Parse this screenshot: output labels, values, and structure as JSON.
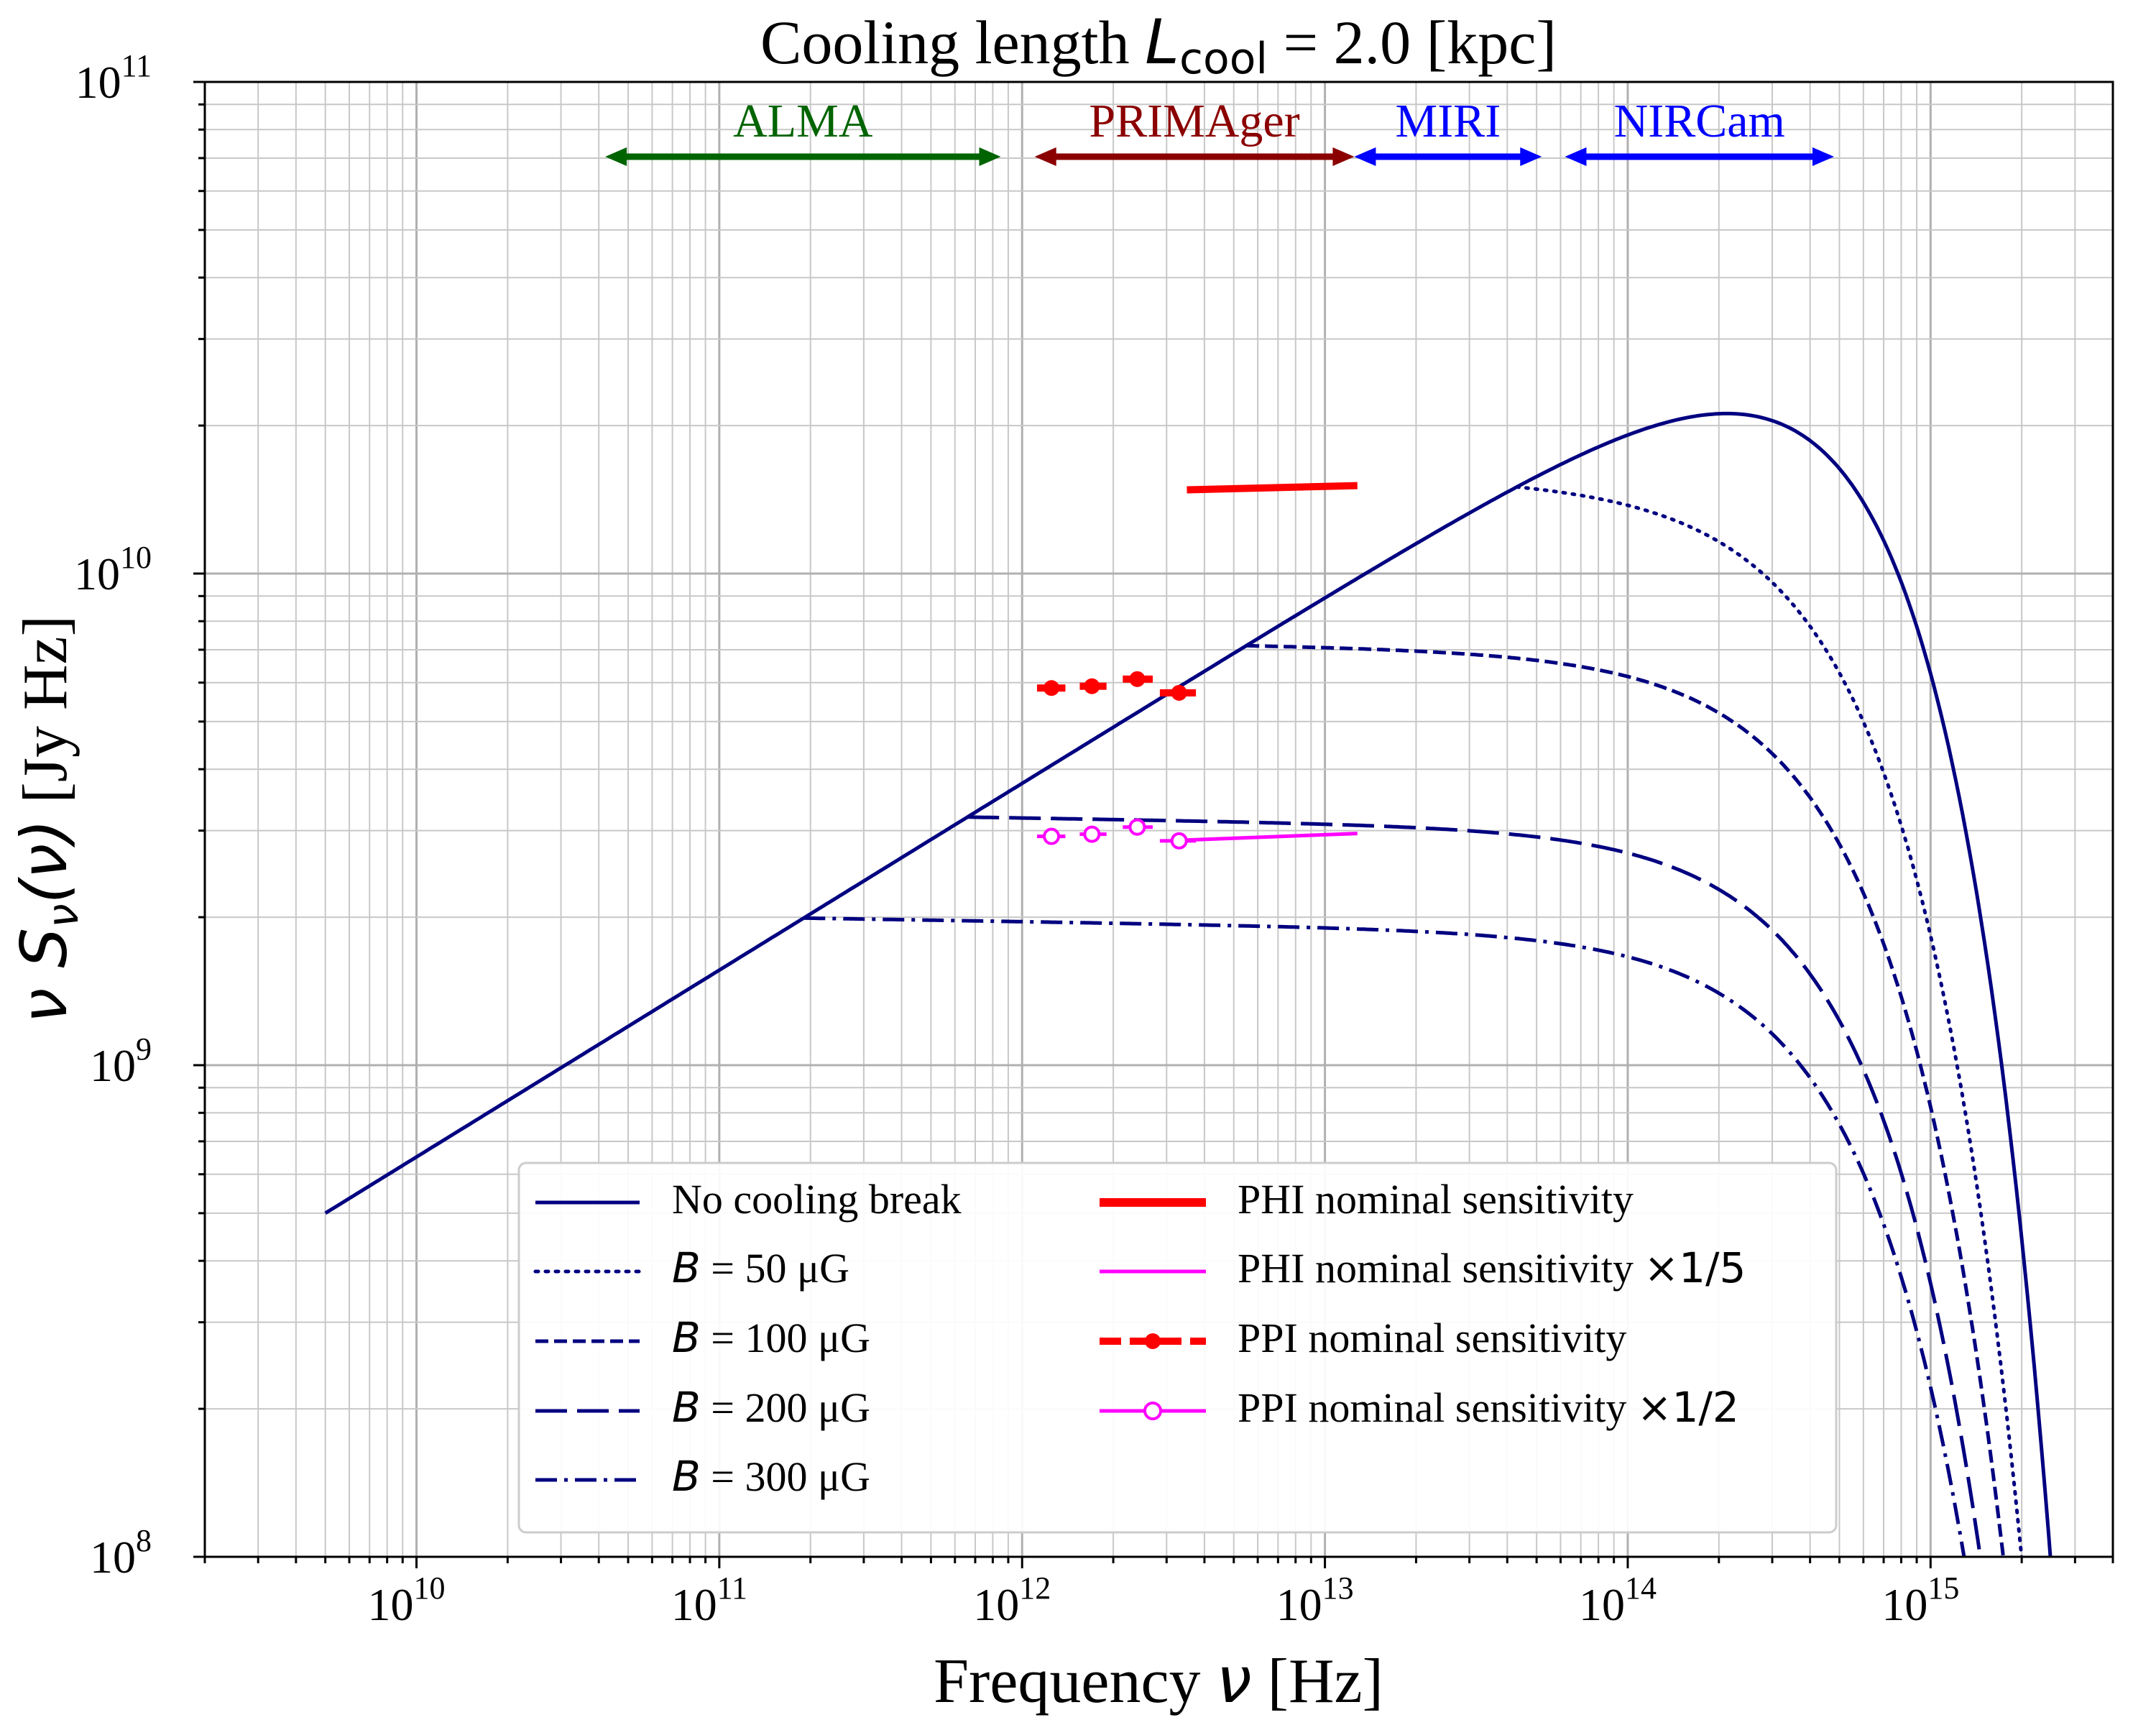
{
  "chart_data": {
    "type": "line",
    "title": {
      "prefix": "Cooling length ",
      "symbol": "L",
      "subscript": "cool",
      "suffix": " = 2.0 [kpc]"
    },
    "xlabel": {
      "prefix": "Frequency ",
      "symbol": "ν",
      "suffix": " [Hz]"
    },
    "ylabel": {
      "symbol": "ν S",
      "subscript": "ν",
      "arg": "(ν)",
      "suffix": " [Jy Hz]"
    },
    "x_scale": "log",
    "y_scale": "log",
    "xlim": [
      2000000000.0,
      4000000000000000.0
    ],
    "ylim": [
      100000000.0,
      100000000000.0
    ],
    "grid": true,
    "x_ticks": [
      {
        "value": 10000000000.0,
        "base": "10",
        "exp": "10"
      },
      {
        "value": 100000000000.0,
        "base": "10",
        "exp": "11"
      },
      {
        "value": 1000000000000.0,
        "base": "10",
        "exp": "12"
      },
      {
        "value": 10000000000000.0,
        "base": "10",
        "exp": "13"
      },
      {
        "value": 100000000000000.0,
        "base": "10",
        "exp": "14"
      },
      {
        "value": 1000000000000000.0,
        "base": "10",
        "exp": "15"
      }
    ],
    "y_ticks": [
      {
        "value": 100000000.0,
        "base": "10",
        "exp": "8"
      },
      {
        "value": 1000000000.0,
        "base": "10",
        "exp": "9"
      },
      {
        "value": 10000000000.0,
        "base": "10",
        "exp": "10"
      },
      {
        "value": 100000000000.0,
        "base": "10",
        "exp": "11"
      }
    ],
    "bands": [
      {
        "name": "ALMA",
        "range": [
          42000000000.0,
          850000000000.0
        ],
        "color": "#006400"
      },
      {
        "name": "PRIMAger",
        "range": [
          1100000000000.0,
          12500000000000.0
        ],
        "color": "#8b0000"
      },
      {
        "name": "MIRI",
        "range": [
          12500000000000.0,
          52000000000000.0
        ],
        "color": "#0000ff"
      },
      {
        "name": "NIRCam",
        "range": [
          62000000000000.0,
          480000000000000.0
        ],
        "color": "#0000ff"
      }
    ],
    "model": {
      "alpha": 0.38,
      "y0": 500000000.0,
      "nu0": 5000000000.0,
      "cutoff": 550000000000000.0,
      "cutoff_power": 1.25
    },
    "series": [
      {
        "name": "No cooling break",
        "style": "solid",
        "break_freq": null,
        "color": "#000080"
      },
      {
        "name": "B = 50 μG",
        "style": "dotted",
        "break_freq": 43000000000000.0,
        "color": "#000080"
      },
      {
        "name": "B = 100 μG",
        "style": "dashed",
        "break_freq": 5500000000000.0,
        "color": "#000080"
      },
      {
        "name": "B = 200 μG",
        "style": "longdash",
        "break_freq": 660000000000.0,
        "color": "#000080"
      },
      {
        "name": "B = 300 μG",
        "style": "dashdot",
        "break_freq": 190000000000.0,
        "color": "#000080"
      }
    ],
    "sensitivity": {
      "phi": {
        "name": "PHI nominal sensitivity",
        "x": [
          3500000000000.0,
          12800000000000.0
        ],
        "y": [
          14800000000.0,
          15100000000.0
        ],
        "color": "#ff0000"
      },
      "phi_scaled": {
        "name": "PHI nominal sensitivity",
        "factor": "×1/5",
        "x": [
          3500000000000.0,
          12800000000000.0
        ],
        "y": [
          2870000000.0,
          2960000000.0
        ],
        "color": "#ff00ff"
      },
      "ppi": {
        "name": "PPI nominal sensitivity",
        "color": "#ff0000",
        "points": [
          {
            "x": 1250000000000.0,
            "y": 5850000000.0,
            "xerr": [
              1120000000000.0,
              1390000000000.0
            ]
          },
          {
            "x": 1700000000000.0,
            "y": 5900000000.0,
            "xerr": [
              1550000000000.0,
              1900000000000.0
            ]
          },
          {
            "x": 2400000000000.0,
            "y": 6100000000.0,
            "xerr": [
              2150000000000.0,
              2700000000000.0
            ]
          },
          {
            "x": 3300000000000.0,
            "y": 5720000000.0,
            "xerr": [
              2850000000000.0,
              3750000000000.0
            ]
          }
        ]
      },
      "ppi_scaled": {
        "name": "PPI nominal sensitivity",
        "factor": "×1/2",
        "color": "#ff00ff",
        "points": [
          {
            "x": 1250000000000.0,
            "y": 2920000000.0,
            "xerr": [
              1120000000000.0,
              1390000000000.0
            ]
          },
          {
            "x": 1700000000000.0,
            "y": 2950000000.0,
            "xerr": [
              1550000000000.0,
              1900000000000.0
            ]
          },
          {
            "x": 2400000000000.0,
            "y": 3050000000.0,
            "xerr": [
              2150000000000.0,
              2700000000000.0
            ]
          },
          {
            "x": 3300000000000.0,
            "y": 2860000000.0,
            "xerr": [
              2850000000000.0,
              3750000000000.0
            ]
          }
        ]
      }
    },
    "legend": {
      "location": "lower-center",
      "entries_left": [
        {
          "key": "none",
          "text": "No cooling break"
        },
        {
          "key": "b50",
          "text": " = 50 μG",
          "symbol": "B"
        },
        {
          "key": "b100",
          "text": " = 100 μG",
          "symbol": "B"
        },
        {
          "key": "b200",
          "text": " = 200 μG",
          "symbol": "B"
        },
        {
          "key": "b300",
          "text": " = 300 μG",
          "symbol": "B"
        }
      ],
      "entries_right": [
        {
          "key": "phi",
          "text": "PHI nominal sensitivity"
        },
        {
          "key": "phi5",
          "text": "PHI nominal sensitivity ",
          "factor": "×1/5"
        },
        {
          "key": "ppi",
          "text": "PPI nominal sensitivity"
        },
        {
          "key": "ppi2",
          "text": "PPI nominal sensitivity ",
          "factor": "×1/2"
        }
      ]
    }
  }
}
